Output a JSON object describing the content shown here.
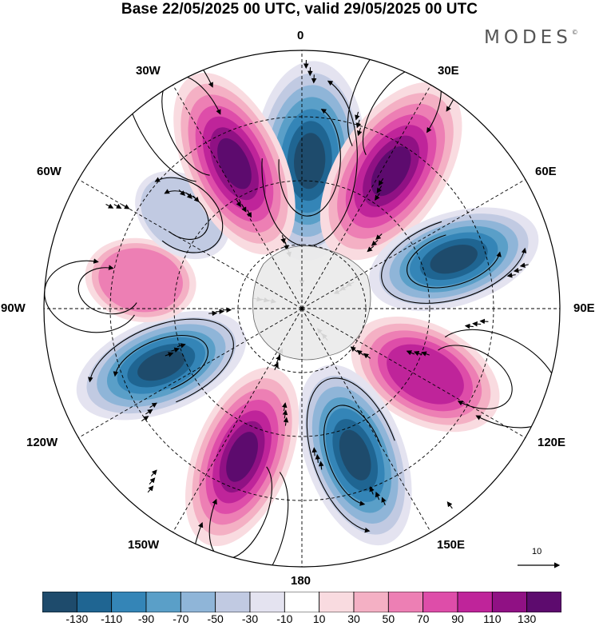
{
  "title": "Base 22/05/2025 00 UTC, valid 29/05/2025 00 UTC",
  "brand": "MODES",
  "brand_mark": "©",
  "longitude_labels": {
    "deg0": "0",
    "e30": "30E",
    "e60": "60E",
    "e90": "90E",
    "e120": "120E",
    "e150": "150E",
    "deg180": "180",
    "w150": "150W",
    "w120": "120W",
    "w90": "90W",
    "w60": "60W",
    "w30": "30W"
  },
  "reference_vector": {
    "label": "10"
  },
  "colorbar": {
    "labels": [
      "-130",
      "-110",
      "-90",
      "-70",
      "-50",
      "-30",
      "-10",
      "10",
      "30",
      "50",
      "70",
      "90",
      "110",
      "130"
    ],
    "colors": [
      "#1e4b6c",
      "#1f6592",
      "#3485b7",
      "#5a9fc8",
      "#8fb5d8",
      "#c1cae2",
      "#e4e3f0",
      "#ffffff",
      "#f9dbe0",
      "#f4b0c4",
      "#ed7fb4",
      "#de4da9",
      "#bf249a",
      "#901184",
      "#5d0b6e"
    ]
  },
  "chart_data": {
    "type": "heatmap",
    "projection": "south polar stereographic",
    "field_levels": [
      -130,
      -110,
      -90,
      -70,
      -50,
      -30,
      -10,
      10,
      30,
      50,
      70,
      90,
      110,
      130
    ],
    "anomaly_centers": [
      {
        "sign": "negative",
        "longitude": "~5E",
        "magnitude": "< -130"
      },
      {
        "sign": "positive",
        "longitude": "~35E",
        "magnitude": "> 130"
      },
      {
        "sign": "negative",
        "longitude": "~75E",
        "magnitude": "< -130"
      },
      {
        "sign": "positive",
        "longitude": "~115E",
        "magnitude": "~110"
      },
      {
        "sign": "negative",
        "longitude": "~155E",
        "magnitude": "< -130"
      },
      {
        "sign": "positive",
        "longitude": "~160W",
        "magnitude": "> 130"
      },
      {
        "sign": "negative",
        "longitude": "~115W",
        "magnitude": "< -130"
      },
      {
        "sign": "positive",
        "longitude": "~80W",
        "magnitude": "~50"
      },
      {
        "sign": "negative",
        "longitude": "~50W",
        "magnitude": "~-50"
      },
      {
        "sign": "positive",
        "longitude": "~25W",
        "magnitude": "> 130"
      }
    ],
    "vectors": "streamlines with arrows overlaid"
  }
}
